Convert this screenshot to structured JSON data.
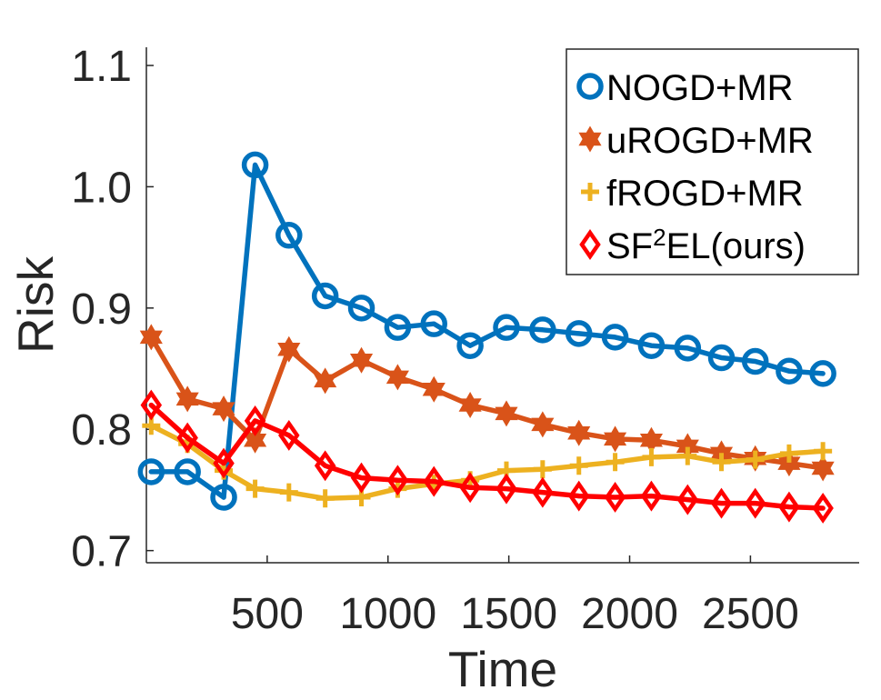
{
  "chart_data": {
    "type": "line",
    "title": "",
    "xlabel": "Time",
    "ylabel": "Risk",
    "xlim": [
      0,
      2950
    ],
    "ylim": [
      0.69,
      1.115
    ],
    "xticks": [
      500,
      1000,
      1500,
      2000,
      2500
    ],
    "yticks": [
      0.7,
      0.8,
      0.9,
      1.0,
      1.1
    ],
    "ytick_labels": [
      "0.7",
      "0.8",
      "0.9",
      "1.0",
      "1.1"
    ],
    "grid": false,
    "legend_position": "top-right",
    "series": [
      {
        "name": "NOGD+MR",
        "color": "#0072BD",
        "marker": "circle",
        "x": [
          20,
          170,
          320,
          450,
          590,
          740,
          890,
          1040,
          1190,
          1340,
          1490,
          1640,
          1790,
          1940,
          2090,
          2240,
          2380,
          2520,
          2660,
          2800
        ],
        "y": [
          0.765,
          0.765,
          0.744,
          1.018,
          0.96,
          0.91,
          0.9,
          0.884,
          0.887,
          0.869,
          0.884,
          0.882,
          0.879,
          0.876,
          0.869,
          0.867,
          0.859,
          0.856,
          0.848,
          0.846
        ],
        "segments": [
          [
            0,
            2
          ],
          [
            2,
            19
          ]
        ]
      },
      {
        "name": "uROGD+MR",
        "color": "#D95319",
        "marker": "hexagram",
        "x": [
          20,
          170,
          320,
          450,
          590,
          740,
          890,
          1040,
          1190,
          1340,
          1490,
          1640,
          1790,
          1940,
          2090,
          2240,
          2380,
          2520,
          2660,
          2800
        ],
        "y": [
          0.876,
          0.825,
          0.817,
          0.791,
          0.866,
          0.84,
          0.857,
          0.843,
          0.833,
          0.82,
          0.813,
          0.804,
          0.797,
          0.792,
          0.791,
          0.786,
          0.78,
          0.776,
          0.772,
          0.768
        ],
        "segments": [
          [
            0,
            19
          ]
        ]
      },
      {
        "name": "fROGD+MR",
        "color": "#EDB120",
        "marker": "plus",
        "x": [
          20,
          170,
          320,
          450,
          590,
          740,
          890,
          1040,
          1190,
          1340,
          1490,
          1640,
          1790,
          1940,
          2090,
          2240,
          2380,
          2520,
          2660,
          2800
        ],
        "y": [
          0.803,
          0.788,
          0.766,
          0.751,
          0.748,
          0.743,
          0.744,
          0.751,
          0.755,
          0.758,
          0.766,
          0.767,
          0.77,
          0.773,
          0.777,
          0.778,
          0.773,
          0.775,
          0.78,
          0.782
        ],
        "segments": [
          [
            0,
            19
          ]
        ]
      },
      {
        "name": "SF²EL(ours)",
        "color": "#FF0000",
        "marker": "diamond",
        "x": [
          20,
          170,
          320,
          450,
          590,
          740,
          890,
          1040,
          1190,
          1340,
          1490,
          1640,
          1790,
          1940,
          2090,
          2240,
          2380,
          2520,
          2660,
          2800
        ],
        "y": [
          0.82,
          0.793,
          0.772,
          0.807,
          0.795,
          0.77,
          0.76,
          0.758,
          0.757,
          0.752,
          0.751,
          0.748,
          0.745,
          0.744,
          0.745,
          0.742,
          0.739,
          0.739,
          0.736,
          0.735
        ],
        "segments": [
          [
            0,
            19
          ]
        ]
      }
    ],
    "legend_entries": [
      {
        "series": 0,
        "prefix": "NOGD+MR",
        "superscript": "",
        "suffix": ""
      },
      {
        "series": 1,
        "prefix": "uROGD+MR",
        "superscript": "",
        "suffix": ""
      },
      {
        "series": 2,
        "prefix": "fROGD+MR",
        "superscript": "",
        "suffix": ""
      },
      {
        "series": 3,
        "prefix": "SF",
        "superscript": "2",
        "suffix": "EL(ours)"
      }
    ]
  }
}
